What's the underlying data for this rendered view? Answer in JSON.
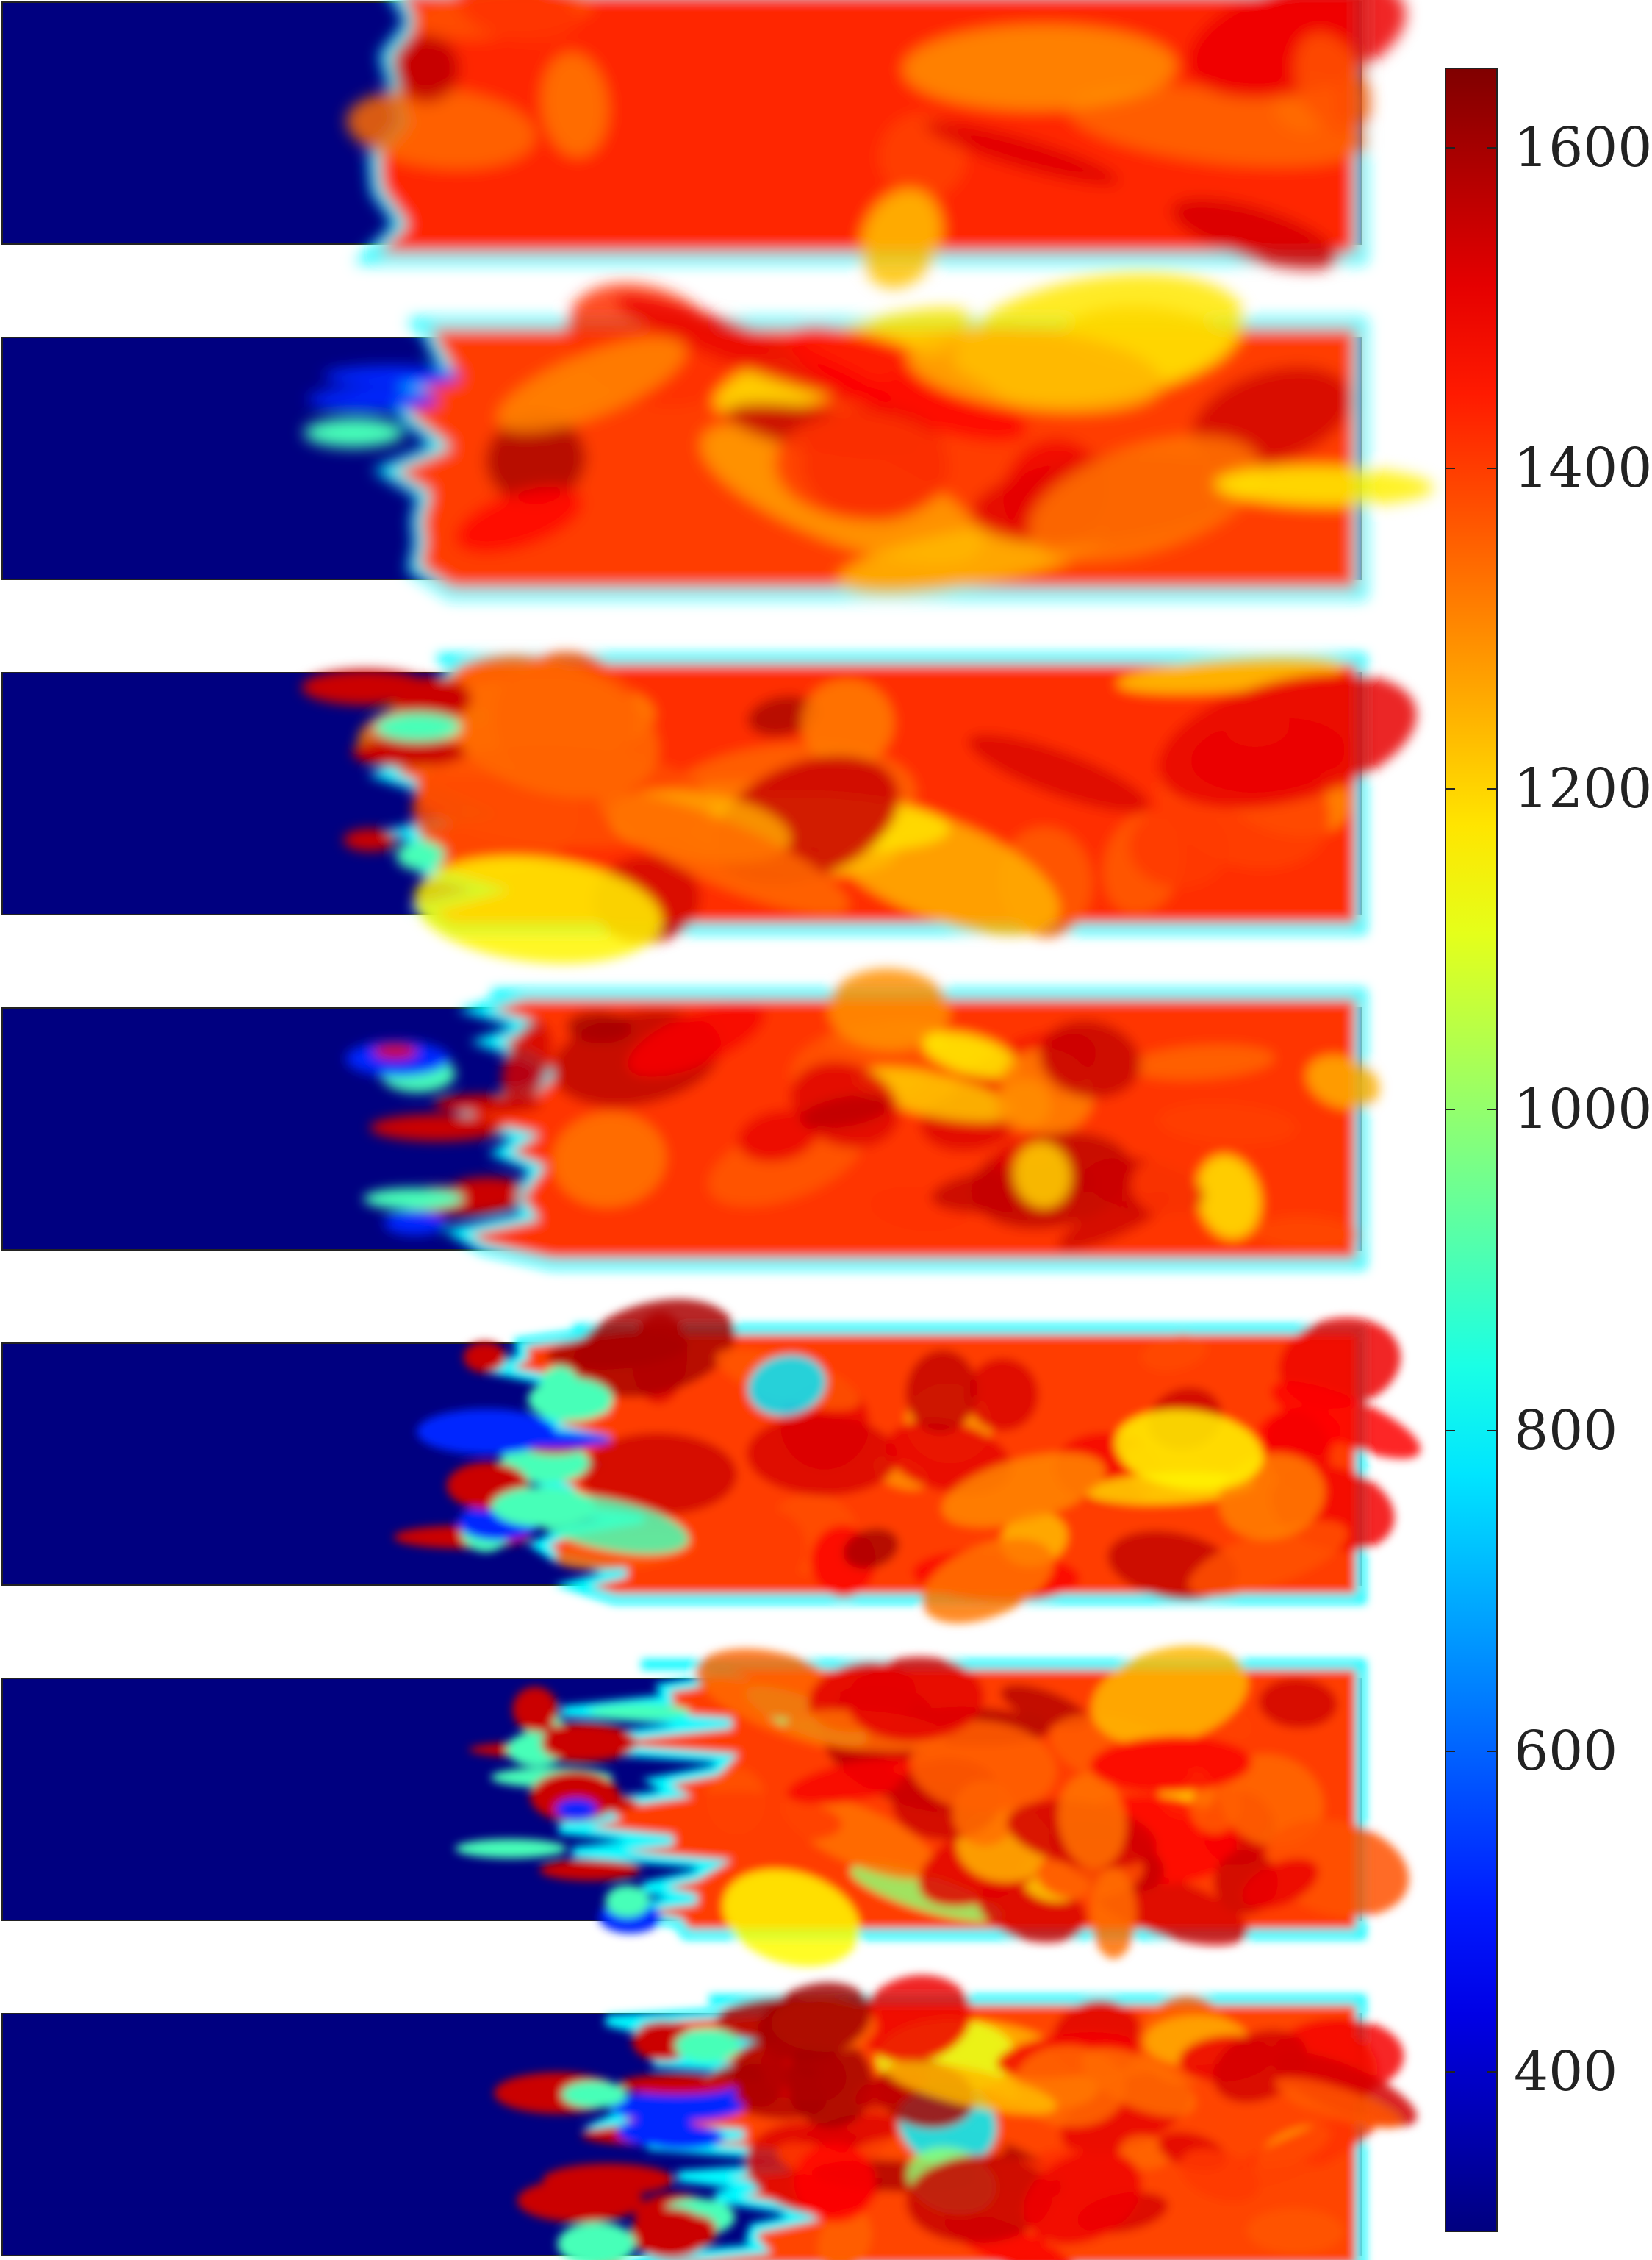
{
  "chart_data": {
    "type": "heatmap",
    "title": "",
    "xlabel": "",
    "ylabel": "",
    "panel_count": 7,
    "colormap": "jet",
    "colorbar": {
      "range": [
        300,
        1650
      ],
      "ticks": [
        400,
        600,
        800,
        1000,
        1200,
        1400,
        1600
      ],
      "tick_labels": [
        "400",
        "600",
        "800",
        "1000",
        "1200",
        "1400",
        "1600"
      ]
    },
    "panels": [
      {
        "unburnt_value": 300,
        "burnt_mean": 1430,
        "front_fraction": 0.28
      },
      {
        "unburnt_value": 300,
        "burnt_mean": 1400,
        "front_fraction": 0.3
      },
      {
        "unburnt_value": 300,
        "burnt_mean": 1420,
        "front_fraction": 0.32
      },
      {
        "unburnt_value": 300,
        "burnt_mean": 1410,
        "front_fraction": 0.36
      },
      {
        "unburnt_value": 300,
        "burnt_mean": 1400,
        "front_fraction": 0.42
      },
      {
        "unburnt_value": 300,
        "burnt_mean": 1400,
        "front_fraction": 0.47
      },
      {
        "unburnt_value": 300,
        "burnt_mean": 1390,
        "front_fraction": 0.52
      }
    ],
    "colors": {
      "unburnt": "#00008f",
      "burnt": "#ff4500",
      "hot": "#8b0000"
    }
  }
}
